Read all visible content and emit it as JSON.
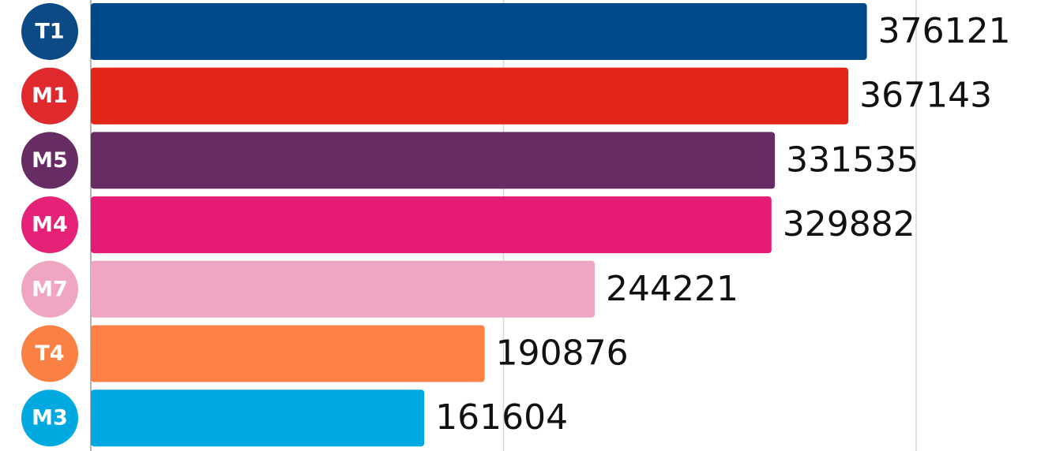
{
  "chart_data": {
    "type": "bar",
    "orientation": "horizontal",
    "categories": [
      "T1",
      "M1",
      "M5",
      "M4",
      "M7",
      "T4",
      "M3"
    ],
    "values": [
      376121,
      367143,
      331535,
      329882,
      244221,
      190876,
      161604
    ],
    "value_labels": [
      "376121",
      "367143",
      "331535",
      "329882",
      "244221",
      "190876",
      "161604"
    ],
    "colors": [
      "#00498a",
      "#e12618",
      "#672c63",
      "#e61b75",
      "#eea6c4",
      "#fd8045",
      "#00a9e1"
    ],
    "badge_colors": [
      "#0c4a85",
      "#e0292c",
      "#672c63",
      "#e52178",
      "#f0a6c3",
      "#fb8043",
      "#00a9e0"
    ],
    "xlim": [
      0,
      400000
    ],
    "gridlines": [
      0,
      200000,
      400000
    ],
    "grid": true,
    "title": "",
    "xlabel": "",
    "ylabel": ""
  }
}
